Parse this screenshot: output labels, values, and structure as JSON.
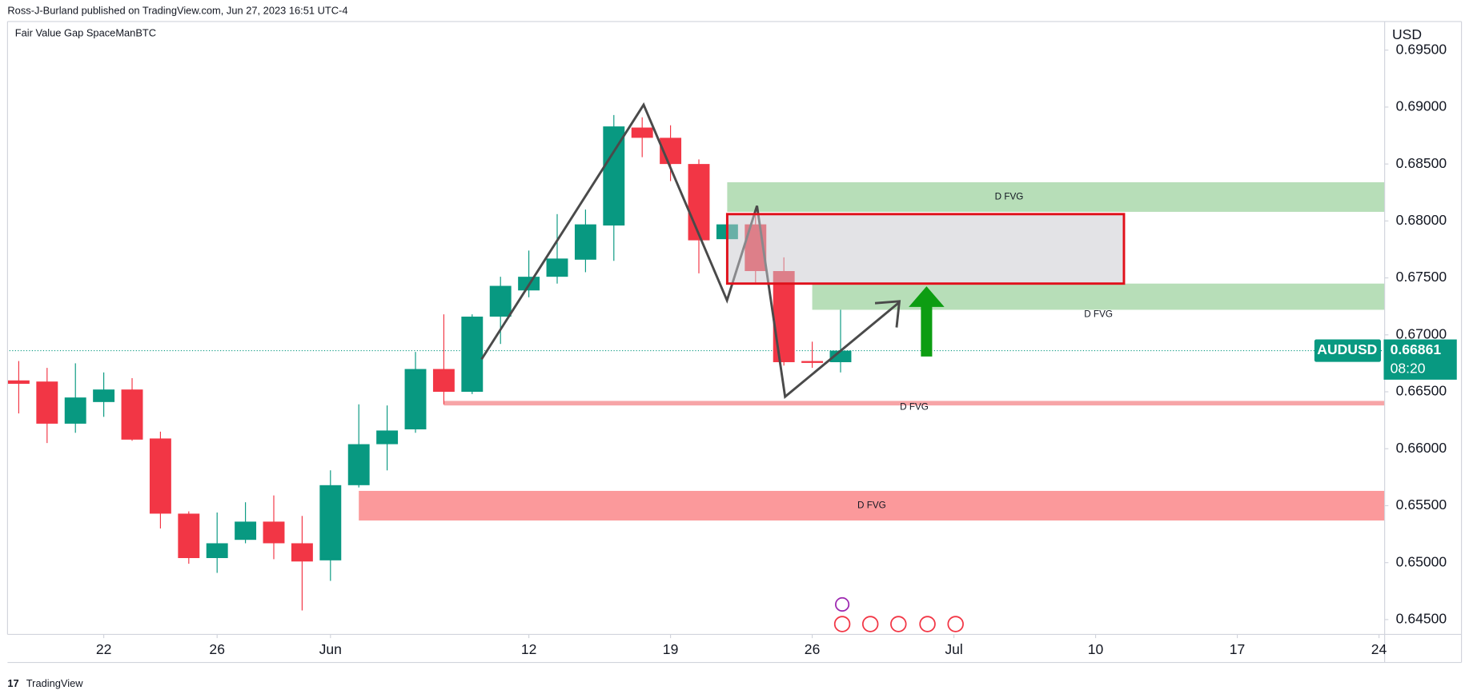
{
  "header": {
    "published": "Ross-J-Burland published on TradingView.com, Jun 27, 2023 16:51 UTC-4",
    "indicator": "Fair Value Gap SpaceManBTC",
    "brand": "TradingView"
  },
  "chart_data": {
    "type": "candlestick",
    "symbol": "AUDUSD",
    "y_axis_label": "USD",
    "last_price": 0.66861,
    "countdown": "08:20",
    "up_color": "#089981",
    "down_color": "#f23645",
    "open": [
      0.666,
      0.6659,
      0.6622,
      0.6641,
      0.6652,
      0.6609,
      0.6543,
      0.6504,
      0.652,
      0.6536,
      0.6517,
      0.6502,
      0.6568,
      0.6604,
      0.6617,
      0.667,
      0.665,
      0.6716,
      0.6739,
      0.6751,
      0.6766,
      0.6796,
      0.6882,
      0.6873,
      0.685,
      0.6784,
      0.6797,
      0.6756,
      0.6677,
      0.6676
    ],
    "high": [
      0.6677,
      0.6671,
      0.6675,
      0.6667,
      0.6662,
      0.6615,
      0.6545,
      0.6544,
      0.6553,
      0.6559,
      0.6541,
      0.6581,
      0.6639,
      0.6638,
      0.6685,
      0.6718,
      0.6718,
      0.6751,
      0.6774,
      0.6806,
      0.681,
      0.6893,
      0.6891,
      0.6884,
      0.6854,
      0.6798,
      0.6805,
      0.6768,
      0.6694,
      0.6722
    ],
    "low": [
      0.6631,
      0.6605,
      0.6614,
      0.6628,
      0.6607,
      0.653,
      0.6499,
      0.6491,
      0.6517,
      0.6503,
      0.6458,
      0.6484,
      0.6566,
      0.6581,
      0.6614,
      0.6639,
      0.6648,
      0.6692,
      0.6733,
      0.6745,
      0.6755,
      0.6765,
      0.6856,
      0.6835,
      0.6754,
      0.6782,
      0.6746,
      0.6673,
      0.6671,
      0.6667
    ],
    "close": [
      0.6657,
      0.6622,
      0.6645,
      0.6652,
      0.6608,
      0.6543,
      0.6504,
      0.6517,
      0.6536,
      0.6517,
      0.6501,
      0.6568,
      0.6604,
      0.6616,
      0.667,
      0.665,
      0.6716,
      0.6743,
      0.6751,
      0.6767,
      0.6797,
      0.6883,
      0.6873,
      0.685,
      0.6783,
      0.6797,
      0.6756,
      0.6676,
      0.6676,
      0.66861
    ],
    "xlim": [
      -0.33,
      48.2
    ],
    "xticks": [
      {
        "value": 3,
        "label": "22"
      },
      {
        "value": 7,
        "label": "26"
      },
      {
        "value": 11,
        "label": "Jun"
      },
      {
        "value": 18,
        "label": "12"
      },
      {
        "value": 23,
        "label": "19"
      },
      {
        "value": 28,
        "label": "26"
      },
      {
        "value": 33,
        "label": "Jul"
      },
      {
        "value": 38,
        "label": "10"
      },
      {
        "value": 43,
        "label": "17"
      },
      {
        "value": 48,
        "label": "24"
      }
    ],
    "ylim": [
      0.6437,
      0.6971
    ],
    "yticks": [
      {
        "value": 0.645,
        "label": "0.64500"
      },
      {
        "value": 0.65,
        "label": "0.65000"
      },
      {
        "value": 0.655,
        "label": "0.65500"
      },
      {
        "value": 0.66,
        "label": "0.66000"
      },
      {
        "value": 0.665,
        "label": "0.66500"
      },
      {
        "value": 0.67,
        "label": "0.67000"
      },
      {
        "value": 0.675,
        "label": "0.67500"
      },
      {
        "value": 0.68,
        "label": "0.68000"
      },
      {
        "value": 0.685,
        "label": "0.68500"
      },
      {
        "value": 0.69,
        "label": "0.69000"
      },
      {
        "value": 0.695,
        "label": "0.69500"
      }
    ],
    "zones": [
      {
        "label": "D FVG",
        "y": [
          0.6808,
          0.6834
        ],
        "x_from": 25,
        "color": "#b7deb8"
      },
      {
        "label": "D FVG",
        "y": [
          0.6722,
          0.6745
        ],
        "x_from": 28,
        "color": "#b7deb8"
      },
      {
        "label": "D FVG",
        "y": [
          0.6638,
          0.6642
        ],
        "x_from": 15,
        "color": "#f7a5a7"
      },
      {
        "label": "D FVG",
        "y": [
          0.6537,
          0.6563
        ],
        "x_from": 12,
        "color": "#fb999b"
      }
    ],
    "highlight_box": {
      "x": [
        25,
        39
      ],
      "y": [
        0.6745,
        0.6806
      ]
    }
  }
}
